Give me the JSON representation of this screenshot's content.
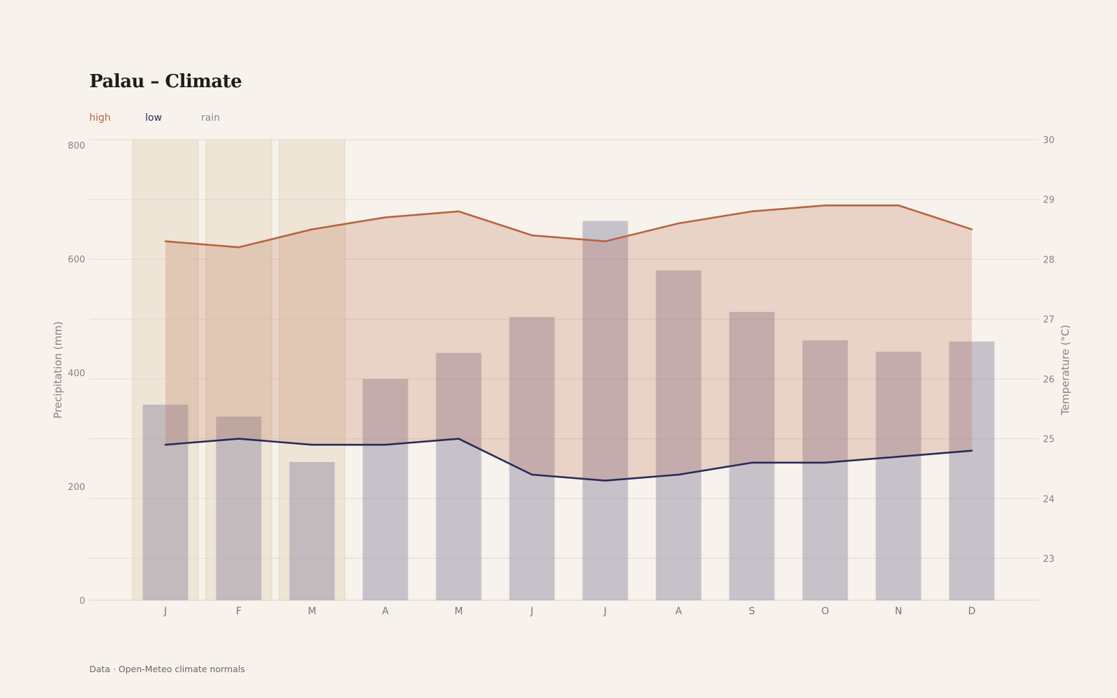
{
  "title": "Palau – Climate",
  "legend": {
    "high": "high",
    "low": "low",
    "rain": "rain"
  },
  "source": "Data · Open-Meteo climate normals",
  "colors": {
    "high": "#b8633f",
    "low": "#2a2957",
    "rain": "#8c86a0",
    "highlight": "#e6d7c0"
  },
  "chart_data": {
    "type": "bar",
    "categories": [
      "J",
      "F",
      "M",
      "A",
      "M",
      "J",
      "J",
      "A",
      "S",
      "O",
      "N",
      "D"
    ],
    "highlighted_months": [
      0,
      1,
      2
    ],
    "series": [
      {
        "name": "rain",
        "type": "bar",
        "axis": "left",
        "values": [
          344,
          323,
          243,
          389,
          435,
          498,
          667,
          580,
          507,
          457,
          437,
          455
        ]
      },
      {
        "name": "high",
        "type": "line",
        "axis": "right",
        "values": [
          28.3,
          28.2,
          28.5,
          28.7,
          28.8,
          28.4,
          28.3,
          28.6,
          28.8,
          28.9,
          28.9,
          28.5
        ]
      },
      {
        "name": "low",
        "type": "line",
        "axis": "right",
        "values": [
          24.9,
          25.0,
          24.9,
          24.9,
          25.0,
          24.4,
          24.3,
          24.4,
          24.6,
          24.6,
          24.7,
          24.8
        ]
      }
    ],
    "ylabel": "Precipitation (mm)",
    "ylabel_right": "Temperature (°C)",
    "ylim": [
      0,
      810
    ],
    "ylim_right": [
      22.3,
      30.0
    ],
    "yticks": [
      0,
      200,
      400,
      600,
      800
    ],
    "yticks_right": [
      23,
      24,
      25,
      26,
      27,
      28,
      29,
      30
    ],
    "grid": true,
    "legend_position": "top-left"
  }
}
